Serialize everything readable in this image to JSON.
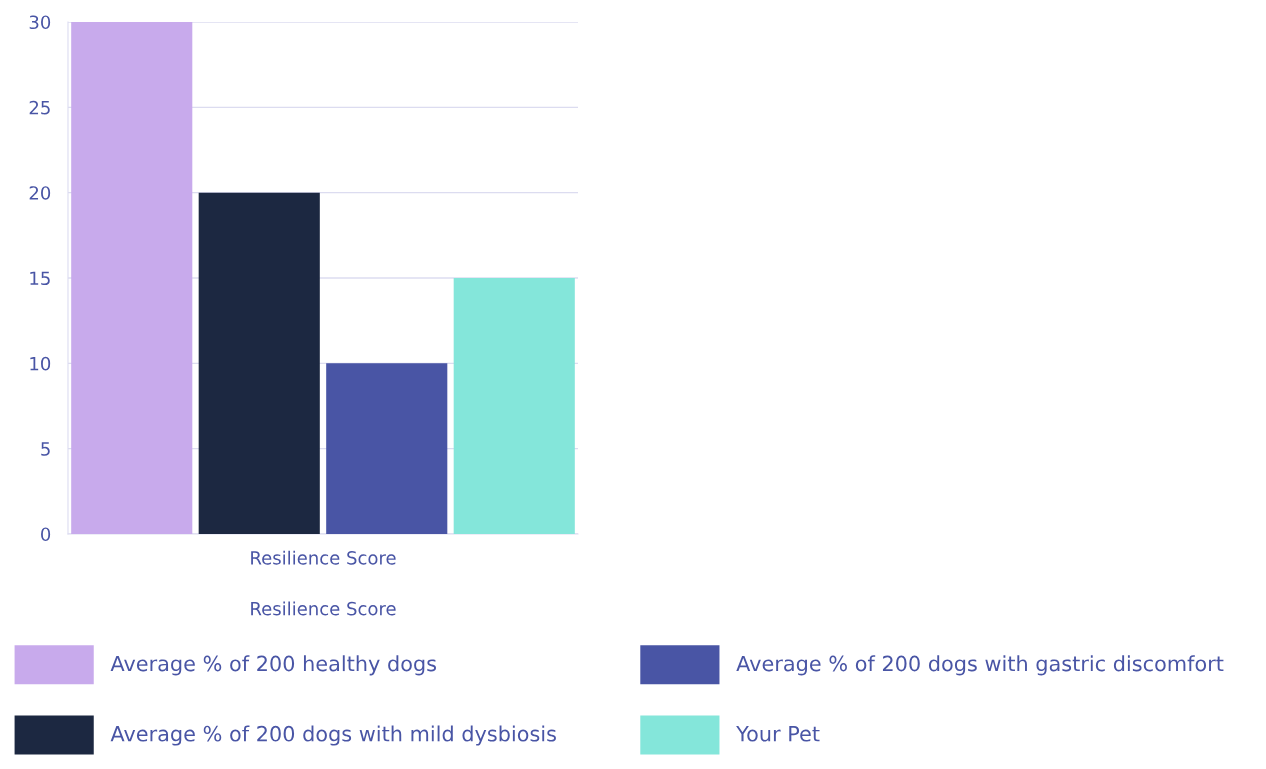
{
  "chart_data": {
    "type": "bar",
    "categories": [
      "Resilience Score"
    ],
    "xlabel": "Resilience Score",
    "series": [
      {
        "name": "Average % of 200 healthy dogs",
        "color": "#c8aaec",
        "values": [
          30
        ]
      },
      {
        "name": "Average % of 200 dogs with mild dysbiosis",
        "color": "#1c2841",
        "values": [
          20
        ]
      },
      {
        "name": "Average % of 200 dogs with gastric discomfort",
        "color": "#4955a5",
        "values": [
          10
        ]
      },
      {
        "name": "Your Pet",
        "color": "#84e6da",
        "values": [
          15
        ]
      }
    ],
    "ylim": [
      0,
      30
    ],
    "yticks": [
      0,
      5,
      10,
      15,
      20,
      25,
      30
    ],
    "grid": "y",
    "legend": "bottom"
  }
}
